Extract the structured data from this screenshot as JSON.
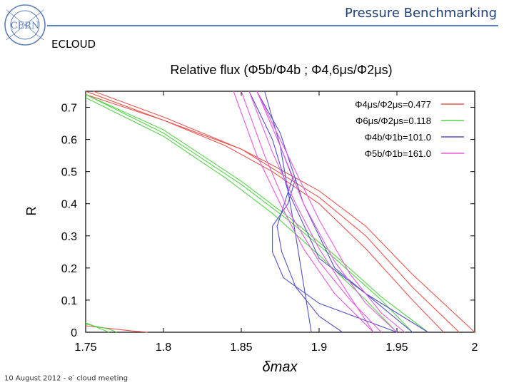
{
  "slide": {
    "title": "Pressure Benchmarking",
    "subtitle": "ECLOUD",
    "logo_text": "CERN",
    "footer_prefix": "10 August 2012  -  e",
    "footer_sup": "-",
    "footer_suffix": " cloud meeting"
  },
  "chart_data": {
    "type": "line",
    "title": "Relative flux (Φ5b/Φ4b ; Φ4,6μs/Φ2μs)",
    "xlabel": "δmax",
    "ylabel": "R",
    "xlim": [
      1.75,
      2.0
    ],
    "ylim": [
      0,
      0.75
    ],
    "xticks": [
      "1.75",
      "1.8",
      "1.85",
      "1.9",
      "1.95",
      "2"
    ],
    "yticks": [
      "0",
      "0.1",
      "0.2",
      "0.3",
      "0.4",
      "0.5",
      "0.6",
      "0.7"
    ],
    "legend_position": "top-right",
    "series": [
      {
        "name": "Φ4μs/Φ2μs=0.477",
        "color": "#e8564f",
        "lines": [
          {
            "x": [
              1.75,
              1.8,
              1.85,
              1.87,
              1.9,
              1.93,
              1.96,
              2.0
            ],
            "y": [
              0.75,
              0.66,
              0.57,
              0.52,
              0.44,
              0.33,
              0.18,
              0.0
            ]
          },
          {
            "x": [
              1.755,
              1.8,
              1.85,
              1.87,
              1.9,
              1.93,
              1.96,
              1.99
            ],
            "y": [
              0.75,
              0.67,
              0.57,
              0.51,
              0.42,
              0.3,
              0.14,
              0.0
            ]
          },
          {
            "x": [
              1.75,
              1.8,
              1.84,
              1.87,
              1.9,
              1.93,
              1.96,
              1.98
            ],
            "y": [
              0.74,
              0.66,
              0.58,
              0.5,
              0.4,
              0.26,
              0.1,
              0.0
            ]
          },
          {
            "x": [
              1.75,
              1.78,
              1.79
            ],
            "y": [
              0.02,
              0.004,
              0.0
            ]
          }
        ]
      },
      {
        "name": "Φ6μs/Φ2μs=0.118",
        "color": "#57d34a",
        "lines": [
          {
            "x": [
              1.75,
              1.8,
              1.85,
              1.88,
              1.91,
              1.94,
              1.97
            ],
            "y": [
              0.74,
              0.63,
              0.47,
              0.36,
              0.24,
              0.11,
              0.0
            ]
          },
          {
            "x": [
              1.75,
              1.8,
              1.85,
              1.88,
              1.91,
              1.94,
              1.96
            ],
            "y": [
              0.74,
              0.62,
              0.46,
              0.35,
              0.23,
              0.1,
              0.0
            ]
          },
          {
            "x": [
              1.75,
              1.8,
              1.84,
              1.87,
              1.9,
              1.93,
              1.95
            ],
            "y": [
              0.73,
              0.61,
              0.48,
              0.37,
              0.24,
              0.1,
              0.0
            ]
          },
          {
            "x": [
              1.75,
              1.76,
              1.765
            ],
            "y": [
              0.03,
              0.01,
              0.0
            ]
          },
          {
            "x": [
              1.75,
              1.765,
              1.77
            ],
            "y": [
              0.025,
              0.01,
              0.0
            ]
          }
        ]
      },
      {
        "name": "Φ4b/Φ1b=101.0",
        "color": "#5252c8",
        "lines": [
          {
            "x": [
              1.855,
              1.87,
              1.88,
              1.9,
              1.93,
              1.96,
              1.97
            ],
            "y": [
              0.75,
              0.6,
              0.44,
              0.23,
              0.12,
              0.03,
              0.0
            ]
          },
          {
            "x": [
              1.86,
              1.875,
              1.89,
              1.91,
              1.94,
              1.96
            ],
            "y": [
              0.75,
              0.62,
              0.4,
              0.2,
              0.08,
              0.0
            ]
          },
          {
            "x": [
              1.875,
              1.883,
              1.873,
              1.876,
              1.885,
              1.9,
              1.915
            ],
            "y": [
              0.58,
              0.48,
              0.33,
              0.25,
              0.14,
              0.05,
              0.0
            ]
          },
          {
            "x": [
              1.885,
              1.88,
              1.87,
              1.87,
              1.877,
              1.9,
              1.95
            ],
            "y": [
              0.48,
              0.4,
              0.33,
              0.25,
              0.17,
              0.09,
              0.0
            ]
          },
          {
            "x": [
              1.865,
              1.875,
              1.885,
              1.895
            ],
            "y": [
              0.75,
              0.58,
              0.3,
              0.0
            ]
          }
        ]
      },
      {
        "name": "Φ5b/Φ1b=161.0",
        "color": "#e85ae0",
        "lines": [
          {
            "x": [
              1.845,
              1.86,
              1.875,
              1.89,
              1.91,
              1.935
            ],
            "y": [
              0.75,
              0.55,
              0.4,
              0.26,
              0.12,
              0.0
            ]
          },
          {
            "x": [
              1.85,
              1.865,
              1.88,
              1.9,
              1.92,
              1.94
            ],
            "y": [
              0.75,
              0.55,
              0.38,
              0.22,
              0.1,
              0.0
            ]
          },
          {
            "x": [
              1.855,
              1.87,
              1.885,
              1.9,
              1.92,
              1.935
            ],
            "y": [
              0.75,
              0.56,
              0.4,
              0.26,
              0.11,
              0.0
            ]
          },
          {
            "x": [
              1.86,
              1.875,
              1.89,
              1.91,
              1.93,
              1.95
            ],
            "y": [
              0.75,
              0.58,
              0.4,
              0.22,
              0.09,
              0.0
            ]
          },
          {
            "x": [
              1.86,
              1.88,
              1.9,
              1.92,
              1.94,
              1.955
            ],
            "y": [
              0.75,
              0.55,
              0.35,
              0.18,
              0.06,
              0.0
            ]
          }
        ]
      }
    ]
  }
}
